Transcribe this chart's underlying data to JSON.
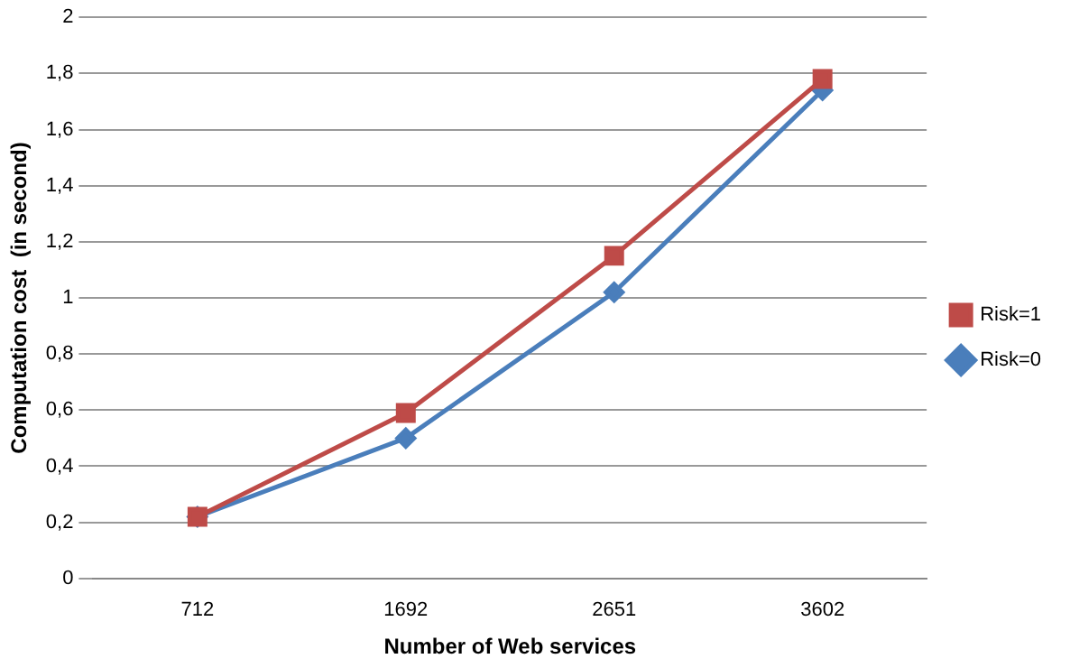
{
  "chart_data": {
    "type": "line",
    "xlabel": "Number of Web services",
    "ylabel": "Computation cost  (in second)",
    "categories": [
      "712",
      "1692",
      "2651",
      "3602"
    ],
    "series": [
      {
        "name": "Risk=0",
        "color": "#4a7ebb",
        "marker": "diamond",
        "values": [
          0.22,
          0.5,
          1.02,
          1.74
        ]
      },
      {
        "name": "Risk=1",
        "color": "#be4b48",
        "marker": "square",
        "values": [
          0.22,
          0.59,
          1.15,
          1.78
        ]
      }
    ],
    "ylim": [
      0,
      2
    ],
    "yticks": [
      0,
      {
        "value": 0.2,
        "label": "0,2"
      },
      {
        "value": 0.4,
        "label": "0,4"
      },
      {
        "value": 0.6,
        "label": "0,6"
      },
      {
        "value": 0.8,
        "label": "0,8"
      },
      1,
      {
        "value": 1.2,
        "label": "1,2"
      },
      {
        "value": 1.4,
        "label": "1,4"
      },
      {
        "value": 1.6,
        "label": "1,6"
      },
      {
        "value": 1.8,
        "label": "1,8"
      },
      2
    ],
    "grid": "y",
    "legend": "right"
  }
}
